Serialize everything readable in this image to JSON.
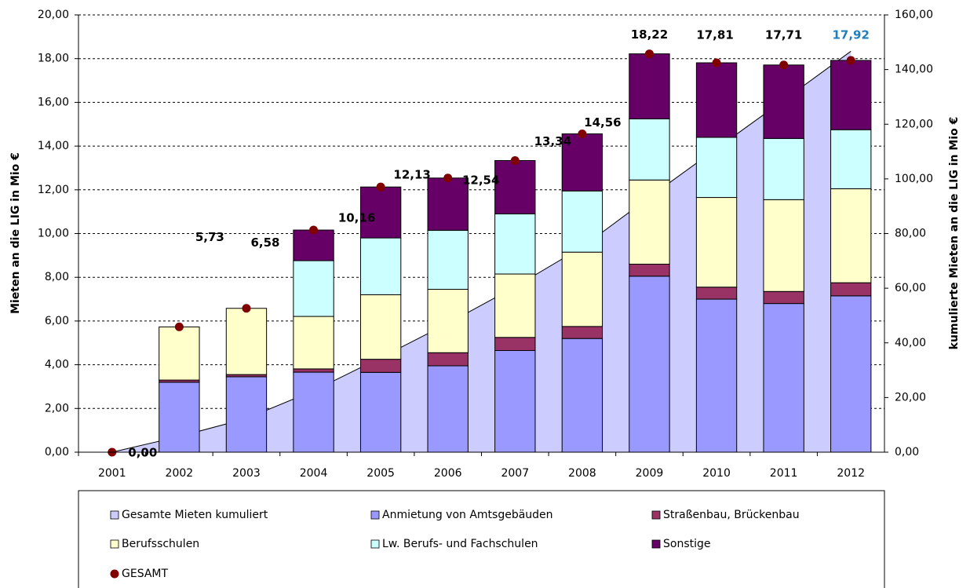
{
  "chart_data": {
    "type": "bar",
    "stacked": true,
    "categories": [
      "2001",
      "2002",
      "2003",
      "2004",
      "2005",
      "2006",
      "2007",
      "2008",
      "2009",
      "2010",
      "2011",
      "2012"
    ],
    "ylabel": "Mieten an die LIG in Mio €",
    "y2label": "kumulierte Mieten an die LIG in Mio €",
    "ylim": [
      0,
      20
    ],
    "yticks": [
      {
        "value": 0,
        "label": "0,00"
      },
      {
        "value": 2,
        "label": "2,00"
      },
      {
        "value": 4,
        "label": "4,00"
      },
      {
        "value": 6,
        "label": "6,00"
      },
      {
        "value": 8,
        "label": "8,00"
      },
      {
        "value": 10,
        "label": "10,00"
      },
      {
        "value": 12,
        "label": "12,00"
      },
      {
        "value": 14,
        "label": "14,00"
      },
      {
        "value": 16,
        "label": "16,00"
      },
      {
        "value": 18,
        "label": "18,00"
      },
      {
        "value": 20,
        "label": "20,00"
      }
    ],
    "y2lim": [
      0,
      160
    ],
    "y2ticks": [
      {
        "value": 0,
        "label": "0,00"
      },
      {
        "value": 20,
        "label": "20,00"
      },
      {
        "value": 40,
        "label": "40,00"
      },
      {
        "value": 60,
        "label": "60,00"
      },
      {
        "value": 80,
        "label": "80,00"
      },
      {
        "value": 100,
        "label": "100,00"
      },
      {
        "value": 120,
        "label": "120,00"
      },
      {
        "value": 140,
        "label": "140,00"
      },
      {
        "value": 160,
        "label": "160,00"
      }
    ],
    "grid": true,
    "legend": "bottom",
    "series": [
      {
        "name": "Gesamte Mieten kumuliert",
        "kind": "area",
        "axis": "y2",
        "color": "#ccccff",
        "values": [
          0,
          5.73,
          12.31,
          22.47,
          34.6,
          47.14,
          60.48,
          75.04,
          93.26,
          111.07,
          128.78,
          146.7
        ]
      },
      {
        "name": "Anmietung von Amtsgebäuden",
        "kind": "bar",
        "color": "#9999ff",
        "values": [
          0,
          3.2,
          3.45,
          3.66,
          3.65,
          3.95,
          4.65,
          5.2,
          8.05,
          7.0,
          6.8,
          7.15
        ]
      },
      {
        "name": "Straßenbau, Brückenbau",
        "kind": "bar",
        "color": "#993366",
        "values": [
          0,
          0.1,
          0.1,
          0.15,
          0.6,
          0.6,
          0.6,
          0.55,
          0.55,
          0.55,
          0.55,
          0.6
        ]
      },
      {
        "name": "Berufsschulen",
        "kind": "bar",
        "color": "#ffffcc",
        "values": [
          0,
          2.43,
          3.03,
          2.4,
          2.95,
          2.9,
          2.9,
          3.4,
          3.85,
          4.1,
          4.2,
          4.3
        ]
      },
      {
        "name": "Lw. Berufs- und Fachschulen",
        "kind": "bar",
        "color": "#ccffff",
        "values": [
          0,
          0,
          0,
          2.55,
          2.6,
          2.7,
          2.75,
          2.8,
          2.8,
          2.75,
          2.8,
          2.7
        ]
      },
      {
        "name": "Sonstige",
        "kind": "bar",
        "color": "#660066",
        "values": [
          0,
          0,
          0,
          1.4,
          2.33,
          2.39,
          2.44,
          2.61,
          2.97,
          3.41,
          3.36,
          3.17
        ]
      },
      {
        "name": "GESAMT",
        "kind": "dot",
        "color": "#800000",
        "values": [
          0,
          5.73,
          6.58,
          10.16,
          12.13,
          12.54,
          13.34,
          14.56,
          18.22,
          17.81,
          17.71,
          17.92
        ],
        "value_labels": [
          "0,00",
          "5,73",
          "6,58",
          "10,16",
          "12,13",
          "12,54",
          "13,34",
          "14,56",
          "18,22",
          "17,81",
          "17,71",
          "17,92"
        ],
        "value_label_colors": [
          "#000000",
          "#000000",
          "#000000",
          "#000000",
          "#000000",
          "#000000",
          "#000000",
          "#000000",
          "#000000",
          "#000000",
          "#000000",
          "#1f7fbf"
        ]
      }
    ]
  }
}
